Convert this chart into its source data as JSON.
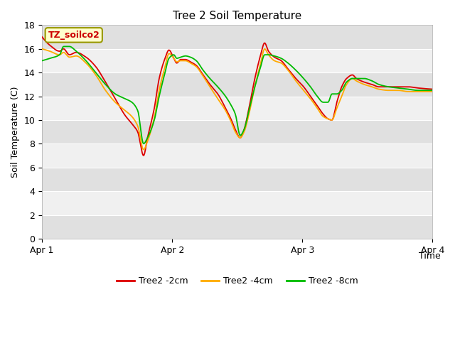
{
  "title": "Tree 2 Soil Temperature",
  "xlabel": "Time",
  "ylabel": "Soil Temperature (C)",
  "ylim": [
    0,
    18
  ],
  "yticks": [
    0,
    2,
    4,
    6,
    8,
    10,
    12,
    14,
    16,
    18
  ],
  "xtick_labels": [
    "Apr 1",
    "Apr 2",
    "Apr 3",
    "Apr 4"
  ],
  "legend_label": "TZ_soilco2",
  "series_labels": [
    "Tree2 -2cm",
    "Tree2 -4cm",
    "Tree2 -8cm"
  ],
  "colors": [
    "#dd0000",
    "#ffaa00",
    "#00bb00"
  ],
  "background_color": "#ffffff",
  "plot_bg_color_dark": "#e0e0e0",
  "plot_bg_color_light": "#f0f0f0",
  "keypoints_2cm": [
    [
      0.0,
      17.0
    ],
    [
      0.08,
      16.3
    ],
    [
      0.18,
      15.8
    ],
    [
      0.22,
      16.0
    ],
    [
      0.28,
      15.5
    ],
    [
      0.35,
      15.7
    ],
    [
      0.45,
      15.3
    ],
    [
      0.55,
      14.5
    ],
    [
      0.65,
      13.2
    ],
    [
      0.75,
      11.8
    ],
    [
      0.85,
      10.4
    ],
    [
      0.92,
      9.7
    ],
    [
      0.98,
      9.0
    ],
    [
      1.04,
      7.0
    ],
    [
      1.08,
      8.5
    ],
    [
      1.15,
      11.0
    ],
    [
      1.2,
      13.5
    ],
    [
      1.26,
      15.2
    ],
    [
      1.3,
      15.9
    ],
    [
      1.35,
      15.2
    ],
    [
      1.38,
      14.8
    ],
    [
      1.42,
      15.1
    ],
    [
      1.47,
      15.1
    ],
    [
      1.52,
      14.9
    ],
    [
      1.58,
      14.6
    ],
    [
      1.65,
      13.8
    ],
    [
      1.72,
      13.0
    ],
    [
      1.8,
      12.2
    ],
    [
      1.88,
      11.0
    ],
    [
      1.94,
      10.0
    ],
    [
      1.98,
      9.2
    ],
    [
      2.03,
      8.5
    ],
    [
      2.07,
      9.2
    ],
    [
      2.12,
      11.0
    ],
    [
      2.18,
      13.5
    ],
    [
      2.24,
      15.5
    ],
    [
      2.28,
      16.5
    ],
    [
      2.32,
      15.8
    ],
    [
      2.38,
      15.3
    ],
    [
      2.45,
      15.0
    ],
    [
      2.52,
      14.3
    ],
    [
      2.6,
      13.5
    ],
    [
      2.68,
      12.8
    ],
    [
      2.75,
      12.0
    ],
    [
      2.82,
      11.2
    ],
    [
      2.88,
      10.5
    ],
    [
      2.93,
      10.1
    ],
    [
      2.97,
      10.0
    ],
    [
      3.02,
      11.5
    ],
    [
      3.07,
      12.8
    ],
    [
      3.12,
      13.5
    ],
    [
      3.18,
      13.8
    ],
    [
      3.22,
      13.5
    ],
    [
      3.3,
      13.2
    ],
    [
      3.38,
      13.0
    ],
    [
      3.45,
      12.8
    ],
    [
      3.55,
      12.8
    ],
    [
      3.65,
      12.8
    ],
    [
      3.75,
      12.8
    ],
    [
      3.85,
      12.7
    ],
    [
      4.0,
      12.6
    ]
  ],
  "keypoints_4cm": [
    [
      0.0,
      16.0
    ],
    [
      0.08,
      15.8
    ],
    [
      0.18,
      15.5
    ],
    [
      0.22,
      15.7
    ],
    [
      0.28,
      15.3
    ],
    [
      0.35,
      15.4
    ],
    [
      0.45,
      14.8
    ],
    [
      0.55,
      13.8
    ],
    [
      0.65,
      12.5
    ],
    [
      0.75,
      11.5
    ],
    [
      0.85,
      10.8
    ],
    [
      0.92,
      10.3
    ],
    [
      0.98,
      9.5
    ],
    [
      1.04,
      7.5
    ],
    [
      1.08,
      8.2
    ],
    [
      1.15,
      10.2
    ],
    [
      1.2,
      12.5
    ],
    [
      1.26,
      14.5
    ],
    [
      1.3,
      15.6
    ],
    [
      1.35,
      15.2
    ],
    [
      1.38,
      14.9
    ],
    [
      1.42,
      15.0
    ],
    [
      1.47,
      15.0
    ],
    [
      1.52,
      14.8
    ],
    [
      1.58,
      14.5
    ],
    [
      1.65,
      13.7
    ],
    [
      1.72,
      12.8
    ],
    [
      1.8,
      11.8
    ],
    [
      1.88,
      10.8
    ],
    [
      1.94,
      9.8
    ],
    [
      1.98,
      9.0
    ],
    [
      2.03,
      8.5
    ],
    [
      2.07,
      9.0
    ],
    [
      2.12,
      10.5
    ],
    [
      2.18,
      12.8
    ],
    [
      2.24,
      14.8
    ],
    [
      2.28,
      16.0
    ],
    [
      2.32,
      15.5
    ],
    [
      2.38,
      15.0
    ],
    [
      2.45,
      14.8
    ],
    [
      2.52,
      14.2
    ],
    [
      2.6,
      13.3
    ],
    [
      2.68,
      12.5
    ],
    [
      2.75,
      11.8
    ],
    [
      2.82,
      11.0
    ],
    [
      2.88,
      10.3
    ],
    [
      2.93,
      10.1
    ],
    [
      2.97,
      10.0
    ],
    [
      3.02,
      11.0
    ],
    [
      3.07,
      12.0
    ],
    [
      3.12,
      13.0
    ],
    [
      3.18,
      13.5
    ],
    [
      3.22,
      13.3
    ],
    [
      3.3,
      13.0
    ],
    [
      3.38,
      12.8
    ],
    [
      3.45,
      12.6
    ],
    [
      3.55,
      12.5
    ],
    [
      3.65,
      12.5
    ],
    [
      3.75,
      12.4
    ],
    [
      3.85,
      12.4
    ],
    [
      4.0,
      12.4
    ]
  ],
  "keypoints_8cm": [
    [
      0.0,
      15.0
    ],
    [
      0.08,
      15.2
    ],
    [
      0.18,
      15.5
    ],
    [
      0.22,
      16.2
    ],
    [
      0.28,
      16.2
    ],
    [
      0.35,
      15.8
    ],
    [
      0.45,
      15.0
    ],
    [
      0.55,
      14.0
    ],
    [
      0.65,
      13.0
    ],
    [
      0.75,
      12.2
    ],
    [
      0.85,
      11.8
    ],
    [
      0.92,
      11.5
    ],
    [
      0.98,
      10.8
    ],
    [
      1.04,
      8.0
    ],
    [
      1.08,
      8.5
    ],
    [
      1.15,
      10.0
    ],
    [
      1.2,
      12.0
    ],
    [
      1.26,
      14.0
    ],
    [
      1.3,
      15.2
    ],
    [
      1.35,
      15.5
    ],
    [
      1.38,
      15.2
    ],
    [
      1.42,
      15.3
    ],
    [
      1.47,
      15.4
    ],
    [
      1.52,
      15.3
    ],
    [
      1.58,
      15.0
    ],
    [
      1.65,
      14.2
    ],
    [
      1.72,
      13.5
    ],
    [
      1.8,
      12.8
    ],
    [
      1.88,
      12.0
    ],
    [
      1.94,
      11.2
    ],
    [
      1.98,
      10.5
    ],
    [
      2.03,
      8.7
    ],
    [
      2.07,
      9.2
    ],
    [
      2.12,
      10.8
    ],
    [
      2.18,
      12.8
    ],
    [
      2.24,
      14.5
    ],
    [
      2.28,
      15.5
    ],
    [
      2.32,
      15.5
    ],
    [
      2.38,
      15.4
    ],
    [
      2.45,
      15.2
    ],
    [
      2.52,
      14.8
    ],
    [
      2.6,
      14.2
    ],
    [
      2.68,
      13.5
    ],
    [
      2.75,
      12.8
    ],
    [
      2.82,
      12.0
    ],
    [
      2.88,
      11.5
    ],
    [
      2.93,
      11.5
    ],
    [
      2.97,
      12.2
    ],
    [
      3.02,
      12.2
    ],
    [
      3.07,
      12.5
    ],
    [
      3.12,
      13.2
    ],
    [
      3.18,
      13.5
    ],
    [
      3.22,
      13.5
    ],
    [
      3.3,
      13.5
    ],
    [
      3.38,
      13.3
    ],
    [
      3.45,
      13.0
    ],
    [
      3.55,
      12.8
    ],
    [
      3.65,
      12.7
    ],
    [
      3.75,
      12.6
    ],
    [
      3.85,
      12.5
    ],
    [
      4.0,
      12.5
    ]
  ]
}
